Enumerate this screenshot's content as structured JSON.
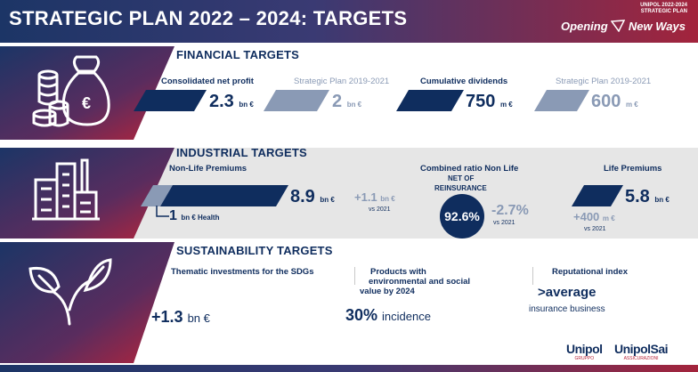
{
  "header": {
    "title": "STRATEGIC PLAN 2022 – 2024: TARGETS",
    "brand_line1": "UNIPOL 2022-2024",
    "brand_line2": "STRATEGIC PLAN",
    "tagline_a": "Opening",
    "tagline_b": "New Ways"
  },
  "financial": {
    "title": "FINANCIAL TARGETS",
    "profit_label": "Consolidated net profit",
    "profit_value": "2.3",
    "profit_unit": "bn €",
    "prev_plan_label_1": "Strategic Plan 2019-2021",
    "prev_profit_value": "2",
    "prev_profit_unit": "bn €",
    "dividends_label": "Cumulative dividends",
    "dividends_value": "750",
    "dividends_unit": "m €",
    "prev_plan_label_2": "Strategic Plan 2019-2021",
    "prev_dividends_value": "600",
    "prev_dividends_unit": "m €"
  },
  "industrial": {
    "title": "INDUSTRIAL TARGETS",
    "nonlife_label": "Non-Life Premiums",
    "nonlife_value": "8.9",
    "nonlife_unit": "bn €",
    "nonlife_delta": "+1.1",
    "nonlife_delta_unit": "bn €",
    "nonlife_delta_ref": "vs 2021",
    "health_value": "1",
    "health_unit": "bn € Health",
    "ratio_label_1": "Combined ratio Non Life",
    "ratio_label_2": "NET OF",
    "ratio_label_3": "REINSURANCE",
    "ratio_value": "92.6%",
    "ratio_delta": "-2.7%",
    "ratio_delta_ref": "vs 2021",
    "life_label": "Life Premiums",
    "life_value": "5.8",
    "life_unit": "bn €",
    "life_delta": "+400",
    "life_delta_unit": "m €",
    "life_delta_ref": "vs 2021"
  },
  "sustainability": {
    "title": "SUSTAINABILITY TARGETS",
    "sdg_label": "Thematic investments for the SDGs",
    "sdg_value": "+1.3",
    "sdg_unit": "bn €",
    "products_label_1": "Products with",
    "products_label_2": "environmental and social",
    "products_label_3": "value by 2024",
    "products_value": "30%",
    "products_unit": "incidence",
    "rep_label": "Reputational index",
    "rep_value": ">average",
    "rep_sub": "insurance business"
  },
  "footer": {
    "logo_1": "Unipol",
    "logo_1_sub": "GRUPPO",
    "logo_2": "UnipolSai",
    "logo_2_sub": "ASSICURAZIONI"
  },
  "colors": {
    "navy": "#0f2d5e",
    "grey": "#8a9ab5",
    "red": "#b8243a"
  }
}
